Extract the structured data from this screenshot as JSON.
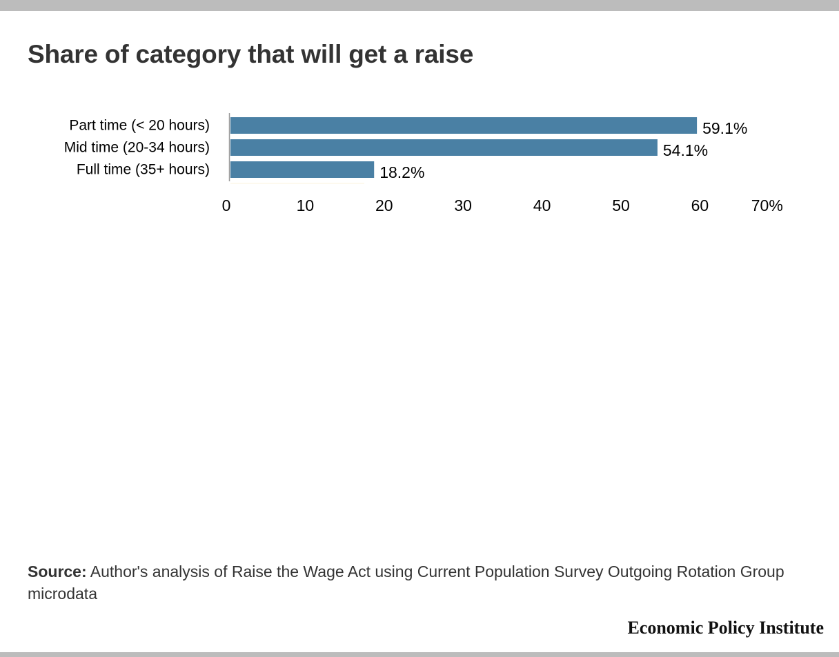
{
  "title": "Share of category that will get a raise",
  "chart_data": {
    "type": "bar",
    "orientation": "horizontal",
    "categories": [
      "Part time (< 20 hours)",
      "Mid time (20-34 hours)",
      "Full time (35+ hours)"
    ],
    "values": [
      59.1,
      54.1,
      18.2
    ],
    "value_labels": [
      "59.1%",
      "54.1%",
      "18.2%"
    ],
    "xlim": [
      0,
      70
    ],
    "x_ticks": [
      0,
      10,
      20,
      30,
      40,
      50,
      60,
      70
    ],
    "x_tick_labels": [
      "0",
      "10",
      "20",
      "30",
      "40",
      "50",
      "60",
      "70%"
    ],
    "grid": false,
    "bar_color": "#4a80a4"
  },
  "source": {
    "label": "Source:",
    "text": " Author's analysis of Raise the Wage Act using Current Population Survey Outgoing Rotation Group microdata"
  },
  "brand": "Economic Policy Institute",
  "colors": {
    "bar": "#4a80a4",
    "rule": "#bcbcbc",
    "title": "#333333"
  }
}
